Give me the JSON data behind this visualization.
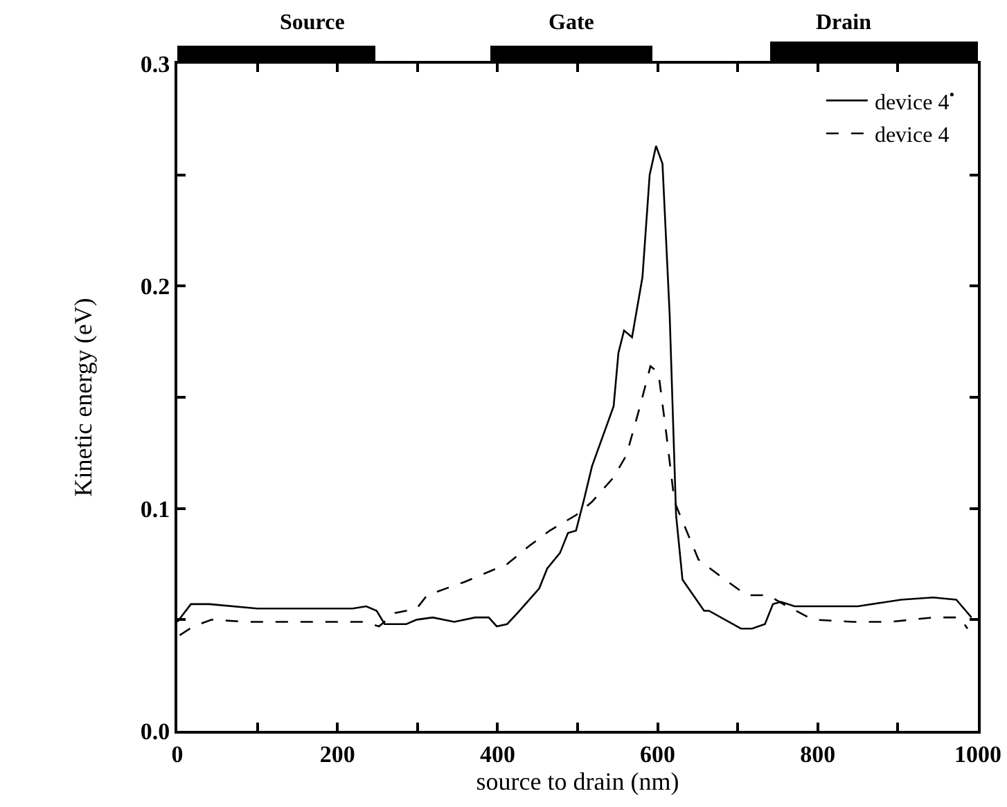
{
  "chart_data": {
    "type": "line",
    "xlabel": "source to drain (nm)",
    "ylabel": "Kinetic energy (eV)",
    "xlim": [
      0,
      1000
    ],
    "ylim": [
      0,
      0.3
    ],
    "xticks": [
      0,
      {
        "value": 100,
        "label": null
      },
      200,
      {
        "value": 300,
        "label": null
      },
      400,
      {
        "value": 500,
        "label": null
      },
      600,
      {
        "value": 700,
        "label": null
      },
      800,
      {
        "value": 900,
        "label": null
      },
      1000
    ],
    "yticks": [
      {
        "value": 0,
        "label": "0.0"
      },
      {
        "value": 0.05,
        "label": null
      },
      0.1,
      {
        "value": 0.15,
        "label": null
      },
      0.2,
      {
        "value": 0.25,
        "label": null
      },
      0.3
    ],
    "grid": false,
    "legend": "top right",
    "marker": "none",
    "annotations": [
      "Source",
      "Gate",
      "Drain"
    ],
    "series": [
      {
        "name": "device 4$^{•}$",
        "color": "#000000",
        "line_style": "solid",
        "x": [
          0,
          17,
          40,
          100,
          219,
          236,
          249,
          259,
          286,
          299,
          319,
          346,
          372,
          389,
          399,
          412,
          425,
          452,
          462,
          478,
          488,
          498,
          508,
          518,
          545,
          551,
          558,
          568,
          581,
          590,
          598,
          606,
          615,
          623,
          631,
          658,
          664,
          704,
          718,
          734,
          744,
          754,
          771,
          850,
          904,
          944,
          973,
          992
        ],
        "values": [
          0.049,
          0.057,
          0.057,
          0.055,
          0.055,
          0.056,
          0.054,
          0.048,
          0.048,
          0.05,
          0.051,
          0.049,
          0.051,
          0.051,
          0.047,
          0.048,
          0.053,
          0.064,
          0.073,
          0.08,
          0.089,
          0.09,
          0.104,
          0.119,
          0.146,
          0.17,
          0.18,
          0.177,
          0.204,
          0.25,
          0.263,
          0.255,
          0.187,
          0.097,
          0.068,
          0.054,
          0.054,
          0.046,
          0.046,
          0.048,
          0.057,
          0.058,
          0.056,
          0.056,
          0.059,
          0.06,
          0.059,
          0.051
        ]
      },
      {
        "name": "device 4",
        "color": "#000000",
        "line_style": "dashed",
        "x": [
          3,
          20,
          43,
          86,
          233,
          252,
          272,
          299,
          312,
          359,
          412,
          439,
          465,
          498,
          518,
          545,
          561,
          578,
          591,
          601,
          611,
          621,
          651,
          684,
          711,
          738,
          757,
          794,
          844,
          890,
          944,
          977,
          987
        ],
        "values": [
          0.043,
          0.047,
          0.05,
          0.049,
          0.049,
          0.047,
          0.053,
          0.055,
          0.061,
          0.067,
          0.075,
          0.083,
          0.09,
          0.097,
          0.103,
          0.114,
          0.124,
          0.146,
          0.164,
          0.161,
          0.133,
          0.103,
          0.077,
          0.068,
          0.061,
          0.061,
          0.057,
          0.05,
          0.049,
          0.049,
          0.051,
          0.051,
          0.046
        ]
      }
    ]
  }
}
